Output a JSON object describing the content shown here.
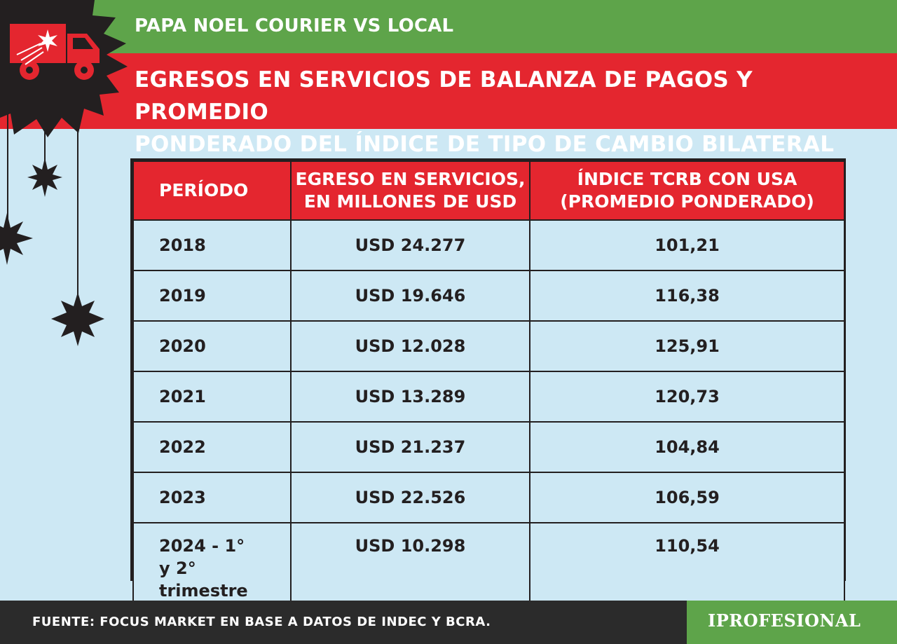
{
  "header": {
    "kicker": "PAPA NOEL COURIER VS LOCAL",
    "title_line1": "EGRESOS EN SERVICIOS DE BALANZA DE PAGOS Y PROMEDIO",
    "title_line2": "PONDERADO DEL ÍNDICE DE TIPO DE CAMBIO BILATERAL"
  },
  "chart_data": {
    "type": "table",
    "columns": [
      [
        "PERÍODO"
      ],
      [
        "EGRESO EN SERVICIOS,",
        "EN MILLONES DE USD"
      ],
      [
        "ÍNDICE TCRB CON USA",
        "(PROMEDIO PONDERADO)"
      ]
    ],
    "rows": [
      {
        "period": "2018",
        "egreso": "USD 24.277",
        "indice": "101,21"
      },
      {
        "period": "2019",
        "egreso": "USD 19.646",
        "indice": "116,38"
      },
      {
        "period": "2020",
        "egreso": "USD 12.028",
        "indice": "125,91"
      },
      {
        "period": "2021",
        "egreso": "USD 13.289",
        "indice": "120,73"
      },
      {
        "period": "2022",
        "egreso": "USD 21.237",
        "indice": "104,84"
      },
      {
        "period": "2023",
        "egreso": "USD 22.526",
        "indice": "106,59"
      },
      {
        "period_line1": "2024 - 1°",
        "period_line2": "y 2° trimestre",
        "egreso": "USD 10.298",
        "indice": "110,54"
      }
    ]
  },
  "footer": {
    "source": "FUENTE: FOCUS MARKET EN BASE A DATOS DE INDEC Y BCRA.",
    "brand": "IPROFESIONAL"
  },
  "colors": {
    "green": "#5ea44a",
    "red": "#e4262f",
    "dark": "#231f20",
    "background": "#cde8f4"
  },
  "icons": [
    "truck-icon",
    "sparkle-icon",
    "star-ornament-icon"
  ]
}
